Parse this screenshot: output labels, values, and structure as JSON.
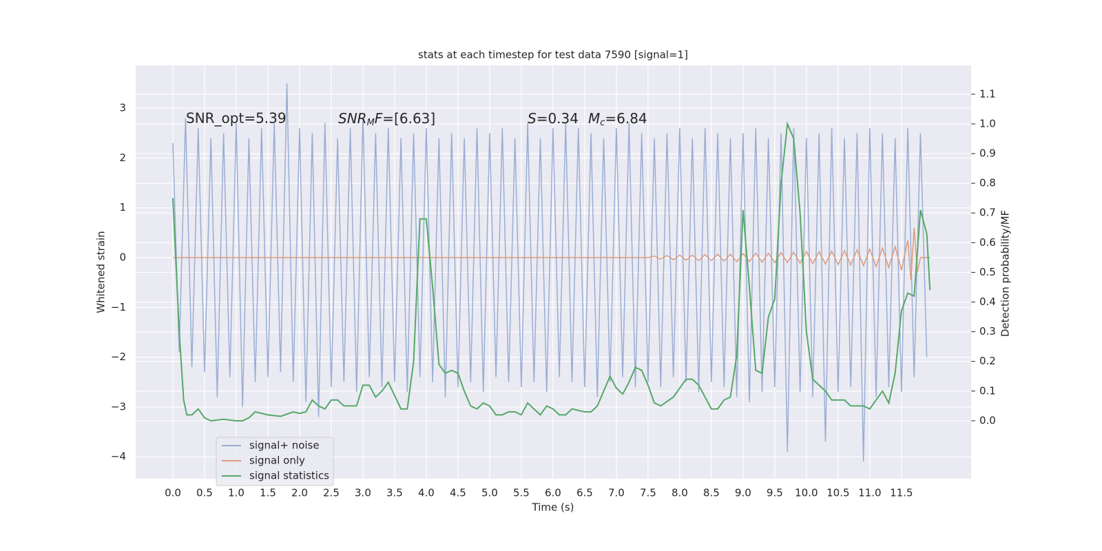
{
  "chart_data": {
    "type": "line",
    "title": "stats at each timestep for test data 7590 [signal=1]",
    "xlabel": "Time (s)",
    "ylabel": "Whitened strain",
    "y2label": "Detection probability/MF",
    "annotations": [
      [
        "SNR_opt=5.39"
      ],
      [
        "SNR",
        "M",
        "F",
        "=[6.63]"
      ],
      [
        "S",
        "=0.34",
        "M",
        "c",
        "=6.84"
      ]
    ],
    "xlim": [
      -0.587,
      12.6
    ],
    "ylim": [
      -4.44,
      3.86
    ],
    "y2lim": [
      -0.195,
      1.197
    ],
    "xticks": [
      {
        "value": 0,
        "label": "0.0"
      },
      {
        "value": 0.5,
        "label": "0.5"
      },
      {
        "value": 1,
        "label": "1.0"
      },
      {
        "value": 1.5,
        "label": "1.5"
      },
      {
        "value": 2,
        "label": "2.0"
      },
      {
        "value": 2.5,
        "label": "2.5"
      },
      {
        "value": 3,
        "label": "3.0"
      },
      {
        "value": 3.5,
        "label": "3.5"
      },
      {
        "value": 4,
        "label": "4.0"
      },
      {
        "value": 4.5,
        "label": "4.5"
      },
      {
        "value": 5,
        "label": "5.0"
      },
      {
        "value": 5.5,
        "label": "5.5"
      },
      {
        "value": 6,
        "label": "6.0"
      },
      {
        "value": 6.5,
        "label": "6.5"
      },
      {
        "value": 7,
        "label": "7.0"
      },
      {
        "value": 7.5,
        "label": "7.5"
      },
      {
        "value": 8,
        "label": "8.0"
      },
      {
        "value": 8.5,
        "label": "8.5"
      },
      {
        "value": 9,
        "label": "9.0"
      },
      {
        "value": 9.5,
        "label": "9.5"
      },
      {
        "value": 10,
        "label": "10.0"
      },
      {
        "value": 10.5,
        "label": "10.5"
      },
      {
        "value": 11,
        "label": "11.0"
      },
      {
        "value": 11.5,
        "label": "11.5"
      }
    ],
    "yticks": [
      {
        "value": -4,
        "label": "−4"
      },
      {
        "value": -3,
        "label": "−3"
      },
      {
        "value": -2,
        "label": "−2"
      },
      {
        "value": -1,
        "label": "−1"
      },
      0,
      1,
      2,
      3
    ],
    "y2ticks": [
      {
        "value": 0,
        "label": "0.0"
      },
      {
        "value": 0.1,
        "label": "0.1"
      },
      {
        "value": 0.2,
        "label": "0.2"
      },
      {
        "value": 0.3,
        "label": "0.3"
      },
      {
        "value": 0.4,
        "label": "0.4"
      },
      {
        "value": 0.5,
        "label": "0.5"
      },
      {
        "value": 0.6,
        "label": "0.6"
      },
      {
        "value": 0.7,
        "label": "0.7"
      },
      {
        "value": 0.8,
        "label": "0.8"
      },
      {
        "value": 0.9,
        "label": "0.9"
      },
      {
        "value": 1,
        "label": "1.0"
      },
      {
        "value": 1.1,
        "label": "1.1"
      }
    ],
    "grid": true,
    "legend_loc": "lower left",
    "series": [
      {
        "name": "signal+ noise",
        "color": "#9aadd3",
        "x": [
          0,
          0.1,
          0.2,
          0.3,
          0.4,
          0.5,
          0.6,
          0.7,
          0.8,
          0.9,
          1,
          1.1,
          1.2,
          1.3,
          1.4,
          1.5,
          1.6,
          1.7,
          1.8,
          1.9,
          2,
          2.1,
          2.2,
          2.3,
          2.4,
          2.5,
          2.6,
          2.7,
          2.8,
          2.9,
          3,
          3.1,
          3.2,
          3.3,
          3.4,
          3.5,
          3.6,
          3.7,
          3.8,
          3.9,
          4,
          4.1,
          4.2,
          4.3,
          4.4,
          4.5,
          4.6,
          4.7,
          4.8,
          4.9,
          5,
          5.1,
          5.2,
          5.3,
          5.4,
          5.5,
          5.6,
          5.7,
          5.8,
          5.9,
          6,
          6.1,
          6.2,
          6.3,
          6.4,
          6.5,
          6.6,
          6.7,
          6.8,
          6.9,
          7,
          7.1,
          7.2,
          7.3,
          7.4,
          7.5,
          7.6,
          7.7,
          7.8,
          7.9,
          8,
          8.1,
          8.2,
          8.3,
          8.4,
          8.5,
          8.6,
          8.7,
          8.8,
          8.9,
          9,
          9.1,
          9.2,
          9.3,
          9.4,
          9.5,
          9.6,
          9.7,
          9.8,
          9.9,
          10,
          10.1,
          10.2,
          10.3,
          10.4,
          10.5,
          10.6,
          10.7,
          10.8,
          10.9,
          11,
          11.1,
          11.2,
          11.3,
          11.4,
          11.5,
          11.6,
          11.7,
          11.8,
          11.9
        ],
        "values": [
          2.3,
          -1.9,
          2.8,
          -2.2,
          2.6,
          -2.3,
          2.4,
          -2.8,
          2.5,
          -2.4,
          2.7,
          -3.0,
          2.4,
          -2.5,
          2.6,
          -2.4,
          2.7,
          -2.3,
          3.5,
          -2.5,
          2.6,
          -2.9,
          2.5,
          -3.2,
          2.7,
          -2.6,
          2.4,
          -2.5,
          2.6,
          -2.7,
          2.8,
          -2.4,
          2.5,
          -2.6,
          2.6,
          -2.5,
          2.4,
          -2.7,
          2.5,
          -2.4,
          2.6,
          -2.5,
          2.4,
          -2.8,
          2.5,
          -2.6,
          2.4,
          -2.5,
          2.6,
          -2.7,
          2.5,
          -2.4,
          2.6,
          -2.5,
          2.4,
          -2.6,
          2.7,
          -2.5,
          2.4,
          -2.7,
          2.6,
          -2.4,
          2.7,
          -2.5,
          2.6,
          -2.6,
          2.5,
          -2.8,
          2.4,
          -2.5,
          2.6,
          -2.4,
          2.7,
          -2.6,
          2.5,
          -2.5,
          2.4,
          -2.6,
          2.5,
          -2.4,
          2.6,
          -2.5,
          2.4,
          -2.7,
          2.6,
          -2.5,
          2.5,
          -2.6,
          2.4,
          -2.8,
          2.5,
          -2.9,
          2.6,
          -2.7,
          2.4,
          -2.6,
          2.5,
          -3.9,
          2.6,
          -2.7,
          2.4,
          -2.8,
          2.5,
          -3.7,
          2.6,
          -2.7,
          2.4,
          -2.6,
          2.5,
          -4.1,
          2.6,
          -2.8,
          2.5,
          -2.6,
          2.4,
          -2.7,
          2.6,
          -2.4,
          2.5,
          -2.0
        ]
      },
      {
        "name": "signal only",
        "color": "#dd9a7c",
        "x": [
          0,
          7.5,
          7.6,
          7.7,
          7.8,
          7.9,
          8,
          8.1,
          8.2,
          8.3,
          8.4,
          8.5,
          8.6,
          8.7,
          8.8,
          8.9,
          9,
          9.1,
          9.2,
          9.3,
          9.4,
          9.5,
          9.6,
          9.7,
          9.8,
          9.9,
          10,
          10.1,
          10.2,
          10.3,
          10.4,
          10.5,
          10.6,
          10.7,
          10.8,
          10.9,
          11,
          11.1,
          11.2,
          11.3,
          11.4,
          11.5,
          11.6,
          11.65,
          11.7,
          11.75,
          11.8,
          11.95
        ],
        "values": [
          0,
          0,
          0.03,
          -0.03,
          0.04,
          -0.04,
          0.05,
          -0.05,
          0.05,
          -0.06,
          0.06,
          -0.06,
          0.07,
          -0.07,
          0.07,
          -0.08,
          0.08,
          -0.08,
          0.09,
          -0.09,
          0.09,
          -0.1,
          0.1,
          -0.1,
          0.11,
          -0.11,
          0.12,
          -0.12,
          0.12,
          -0.13,
          0.13,
          -0.14,
          0.14,
          -0.15,
          0.16,
          -0.16,
          0.17,
          -0.18,
          0.19,
          -0.2,
          0.22,
          -0.25,
          0.35,
          -0.45,
          0.6,
          -0.3,
          0,
          0
        ]
      },
      {
        "name": "signal statistics",
        "color": "#55a868",
        "axis": "y2",
        "x": [
          0,
          0.1,
          0.17,
          0.22,
          0.3,
          0.4,
          0.5,
          0.6,
          0.8,
          1,
          1.1,
          1.2,
          1.3,
          1.5,
          1.7,
          1.9,
          2,
          2.1,
          2.2,
          2.3,
          2.4,
          2.5,
          2.6,
          2.7,
          2.9,
          3,
          3.1,
          3.2,
          3.3,
          3.4,
          3.6,
          3.7,
          3.8,
          3.9,
          4,
          4.1,
          4.2,
          4.3,
          4.4,
          4.5,
          4.6,
          4.7,
          4.8,
          4.9,
          5,
          5.1,
          5.2,
          5.3,
          5.4,
          5.5,
          5.6,
          5.7,
          5.8,
          5.9,
          6,
          6.1,
          6.2,
          6.3,
          6.5,
          6.6,
          6.7,
          6.9,
          7,
          7.1,
          7.2,
          7.3,
          7.4,
          7.5,
          7.6,
          7.7,
          7.9,
          8,
          8.1,
          8.2,
          8.3,
          8.5,
          8.6,
          8.7,
          8.8,
          8.9,
          9,
          9.1,
          9.2,
          9.3,
          9.4,
          9.5,
          9.6,
          9.7,
          9.8,
          9.9,
          10,
          10.1,
          10.2,
          10.3,
          10.4,
          10.6,
          10.7,
          10.8,
          10.9,
          11,
          11.1,
          11.2,
          11.3,
          11.4,
          11.5,
          11.6,
          11.7,
          11.8,
          11.9,
          11.95
        ],
        "values": [
          0.75,
          0.3,
          0.07,
          0.02,
          0.02,
          0.04,
          0.01,
          0,
          0.005,
          0,
          0,
          0.01,
          0.03,
          0.02,
          0.015,
          0.03,
          0.025,
          0.03,
          0.07,
          0.05,
          0.04,
          0.07,
          0.07,
          0.05,
          0.05,
          0.12,
          0.12,
          0.08,
          0.1,
          0.13,
          0.04,
          0.04,
          0.2,
          0.68,
          0.68,
          0.45,
          0.19,
          0.16,
          0.17,
          0.16,
          0.1,
          0.05,
          0.04,
          0.06,
          0.05,
          0.02,
          0.02,
          0.03,
          0.03,
          0.02,
          0.06,
          0.04,
          0.02,
          0.05,
          0.04,
          0.02,
          0.02,
          0.04,
          0.03,
          0.03,
          0.05,
          0.15,
          0.11,
          0.09,
          0.13,
          0.18,
          0.17,
          0.12,
          0.06,
          0.05,
          0.08,
          0.11,
          0.14,
          0.14,
          0.12,
          0.04,
          0.04,
          0.07,
          0.08,
          0.22,
          0.71,
          0.45,
          0.17,
          0.16,
          0.35,
          0.41,
          0.8,
          1.0,
          0.95,
          0.7,
          0.3,
          0.14,
          0.12,
          0.1,
          0.07,
          0.07,
          0.05,
          0.05,
          0.05,
          0.04,
          0.07,
          0.1,
          0.06,
          0.16,
          0.37,
          0.43,
          0.42,
          0.71,
          0.63,
          0.44
        ]
      }
    ]
  }
}
